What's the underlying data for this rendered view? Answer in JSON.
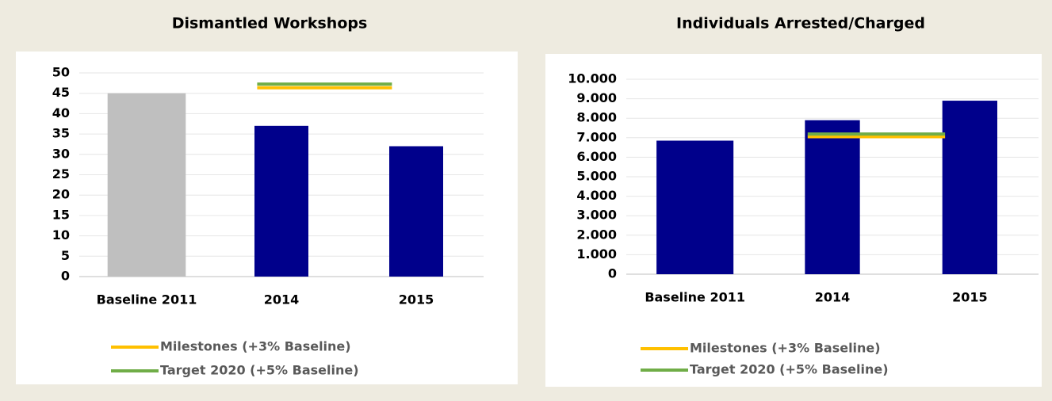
{
  "chart_data": [
    {
      "type": "bar",
      "title": "Dismantled Workshops",
      "categories": [
        "Baseline 2011",
        "2014",
        "2015"
      ],
      "values": [
        45,
        37,
        32
      ],
      "colors": [
        "#bfbfbf",
        "#00008b",
        "#00008b"
      ],
      "ylim": [
        0,
        50
      ],
      "yticks": [
        0,
        5,
        10,
        15,
        20,
        25,
        30,
        35,
        40,
        45,
        50
      ],
      "grid": true,
      "series": [
        {
          "name": "Milestones (+3% Baseline)",
          "color": "#ffc000",
          "values": [
            null,
            46.35,
            46.35
          ]
        },
        {
          "name": "Target 2020 (+5% Baseline)",
          "color": "#70ad47",
          "values": [
            null,
            47.25,
            47.25
          ]
        }
      ]
    },
    {
      "type": "bar",
      "title": "Individuals Arrested/Charged",
      "categories": [
        "Baseline 2011",
        "2014",
        "2015"
      ],
      "values": [
        6850,
        7900,
        8900
      ],
      "colors": [
        "#00008b",
        "#00008b",
        "#00008b"
      ],
      "ylim": [
        0,
        10000
      ],
      "yticks": [
        0,
        {
          "value": 1000,
          "label": "1.000"
        },
        {
          "value": 2000,
          "label": "2.000"
        },
        {
          "value": 3000,
          "label": "3.000"
        },
        {
          "value": 4000,
          "label": "4.000"
        },
        {
          "value": 5000,
          "label": "5.000"
        },
        {
          "value": 6000,
          "label": "6.000"
        },
        {
          "value": 7000,
          "label": "7.000"
        },
        {
          "value": 8000,
          "label": "8.000"
        },
        {
          "value": 9000,
          "label": "9.000"
        },
        {
          "value": 10000,
          "label": "10.000"
        }
      ],
      "grid": true,
      "series": [
        {
          "name": "Milestones (+3% Baseline)",
          "color": "#ffc000",
          "values": [
            null,
            7055,
            7055
          ]
        },
        {
          "name": "Target 2020 (+5% Baseline)",
          "color": "#70ad47",
          "values": [
            null,
            7190,
            7190
          ]
        }
      ]
    }
  ]
}
